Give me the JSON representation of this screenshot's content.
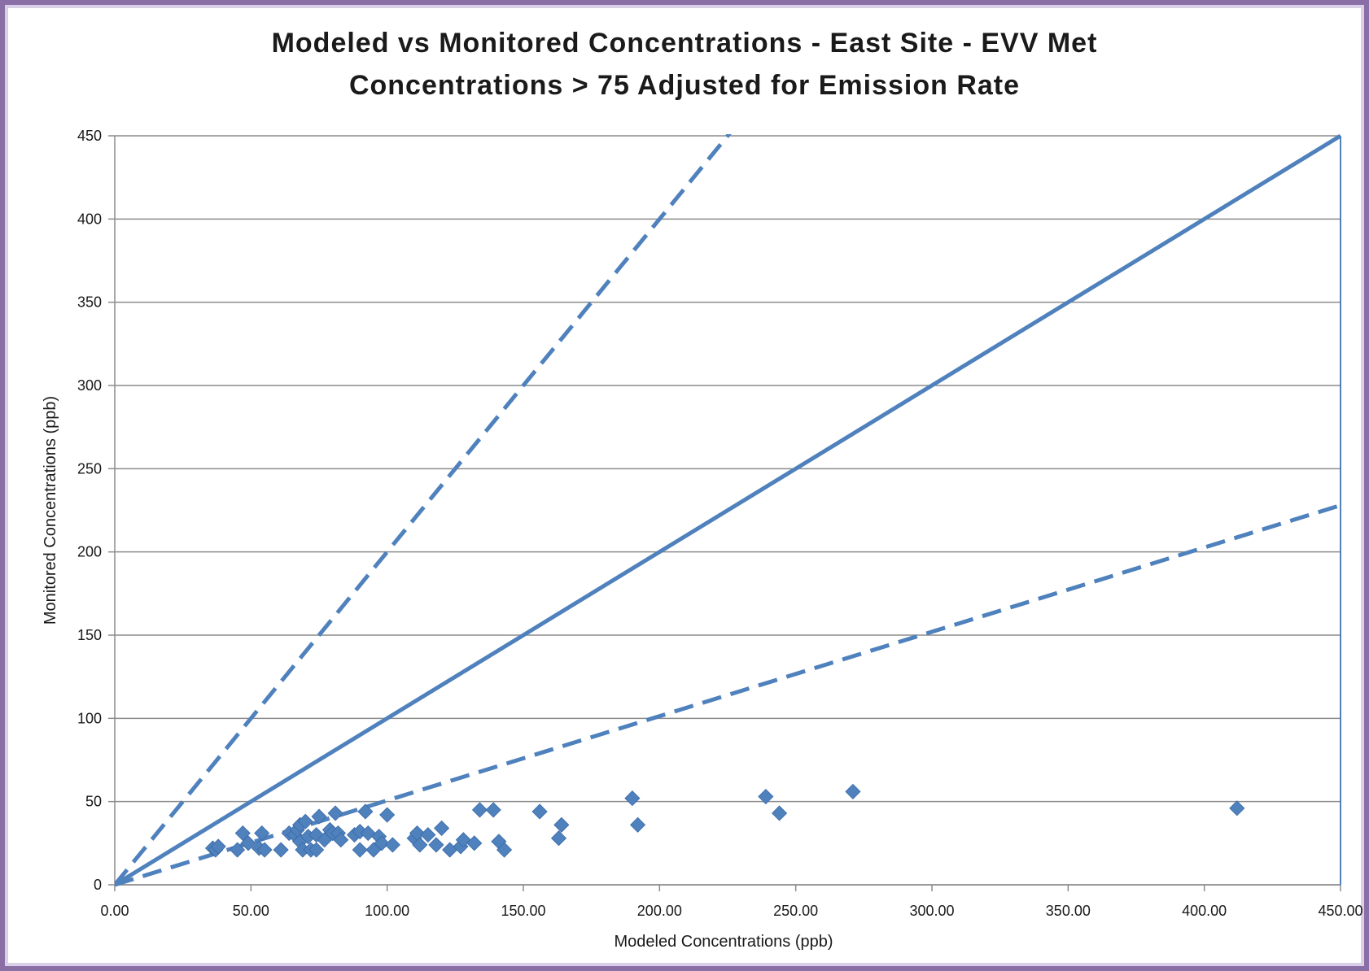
{
  "chart_data": {
    "type": "scatter",
    "title": [
      "Modeled vs Monitored Concentrations - East Site - EVV Met",
      "Concentrations > 75 Adjusted for Emission Rate"
    ],
    "xlabel": "Modeled Concentrations (ppb)",
    "ylabel": "Monitored Concentrations (ppb)",
    "xlim": [
      0,
      450
    ],
    "ylim": [
      0,
      450
    ],
    "x_ticks": [
      "0.00",
      "50.00",
      "100.00",
      "150.00",
      "200.00",
      "250.00",
      "300.00",
      "350.00",
      "400.00",
      "450.00"
    ],
    "y_ticks": [
      "0",
      "50",
      "100",
      "150",
      "200",
      "250",
      "300",
      "350",
      "400",
      "450"
    ],
    "grid": "horizontal",
    "legend": "none",
    "colors": {
      "series": "#4f81bd",
      "grid": "#8c8c8c",
      "axis": "#8c8c8c"
    },
    "reference_lines": [
      {
        "style": "dashed",
        "x": [
          0,
          228
        ],
        "y": [
          0,
          456
        ]
      },
      {
        "style": "solid",
        "x": [
          0,
          450
        ],
        "y": [
          0,
          450
        ]
      },
      {
        "style": "dashed",
        "x": [
          0,
          450
        ],
        "y": [
          0,
          228
        ]
      }
    ],
    "series": [
      {
        "marker": "diamond",
        "points": [
          [
            36,
            22
          ],
          [
            37,
            21
          ],
          [
            38,
            23
          ],
          [
            45,
            21
          ],
          [
            47,
            31
          ],
          [
            49,
            25
          ],
          [
            53,
            22
          ],
          [
            54,
            31
          ],
          [
            55,
            21
          ],
          [
            61,
            21
          ],
          [
            64,
            31
          ],
          [
            66,
            30
          ],
          [
            67,
            33
          ],
          [
            68,
            26
          ],
          [
            68,
            36
          ],
          [
            69,
            21
          ],
          [
            70,
            38
          ],
          [
            71,
            29
          ],
          [
            72,
            21
          ],
          [
            74,
            21
          ],
          [
            74,
            30
          ],
          [
            75,
            41
          ],
          [
            77,
            27
          ],
          [
            79,
            33
          ],
          [
            80,
            31
          ],
          [
            81,
            43
          ],
          [
            82,
            31
          ],
          [
            83,
            27
          ],
          [
            88,
            30
          ],
          [
            90,
            32
          ],
          [
            90,
            21
          ],
          [
            92,
            44
          ],
          [
            93,
            31
          ],
          [
            95,
            21
          ],
          [
            97,
            29
          ],
          [
            98,
            25
          ],
          [
            100,
            42
          ],
          [
            102,
            24
          ],
          [
            110,
            28
          ],
          [
            111,
            31
          ],
          [
            112,
            24
          ],
          [
            115,
            30
          ],
          [
            118,
            24
          ],
          [
            120,
            34
          ],
          [
            123,
            21
          ],
          [
            127,
            23
          ],
          [
            128,
            27
          ],
          [
            132,
            25
          ],
          [
            134,
            45
          ],
          [
            139,
            45
          ],
          [
            141,
            26
          ],
          [
            143,
            21
          ],
          [
            156,
            44
          ],
          [
            163,
            28
          ],
          [
            164,
            36
          ],
          [
            190,
            52
          ],
          [
            192,
            36
          ],
          [
            239,
            53
          ],
          [
            244,
            43
          ],
          [
            271,
            56
          ],
          [
            412,
            46
          ]
        ]
      }
    ]
  }
}
